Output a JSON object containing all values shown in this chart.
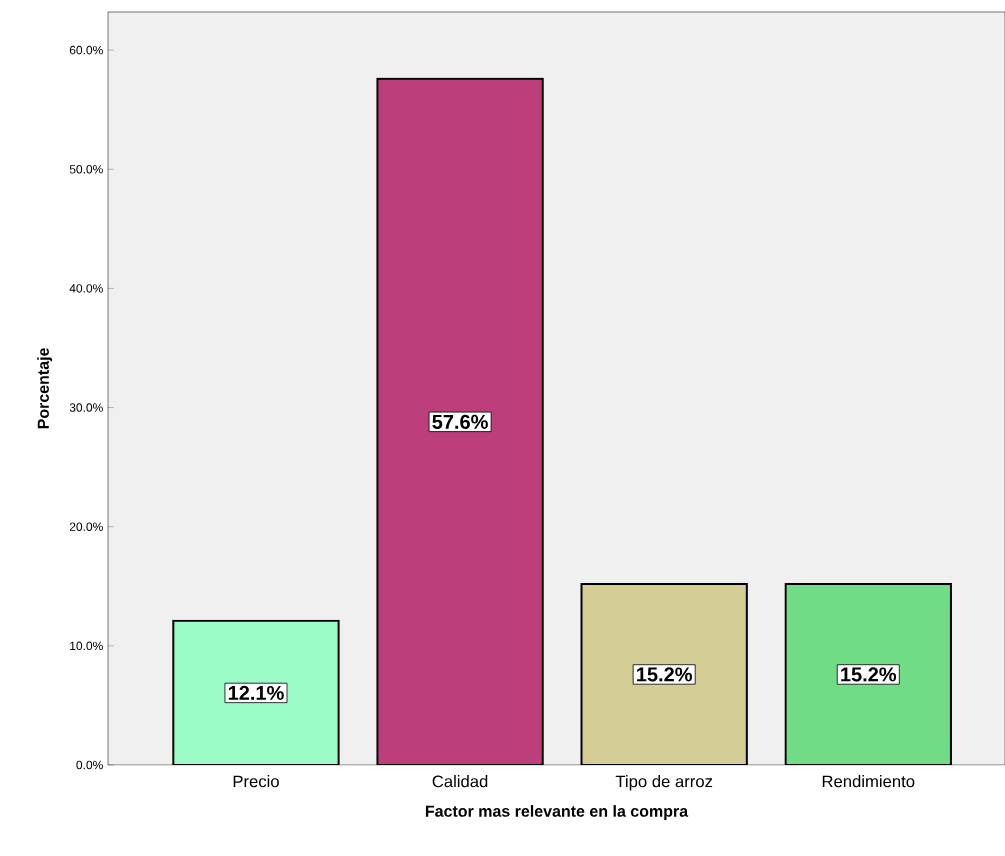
{
  "chart_data": {
    "type": "bar",
    "xlabel": "Factor mas relevante en la compra",
    "ylabel": "Porcentaje",
    "categories": [
      "Precio",
      "Calidad",
      "Tipo de arroz",
      "Rendimiento"
    ],
    "values": [
      12.1,
      57.6,
      15.2,
      15.2
    ],
    "colors": [
      "#9cfcc8",
      "#bc3f7b",
      "#d5cd96",
      "#70dc86"
    ],
    "value_labels": [
      "12.1%",
      "57.6%",
      "15.2%",
      "15.2%"
    ],
    "ylim": [
      0,
      63.2
    ],
    "yticks": [
      {
        "value": 0,
        "label": "0.0%"
      },
      {
        "value": 10,
        "label": "10.0%"
      },
      {
        "value": 20,
        "label": "20.0%"
      },
      {
        "value": 30,
        "label": "30.0%"
      },
      {
        "value": 40,
        "label": "40.0%"
      },
      {
        "value": 50,
        "label": "50.0%"
      },
      {
        "value": 60,
        "label": "60.0%"
      }
    ],
    "grid": false
  }
}
